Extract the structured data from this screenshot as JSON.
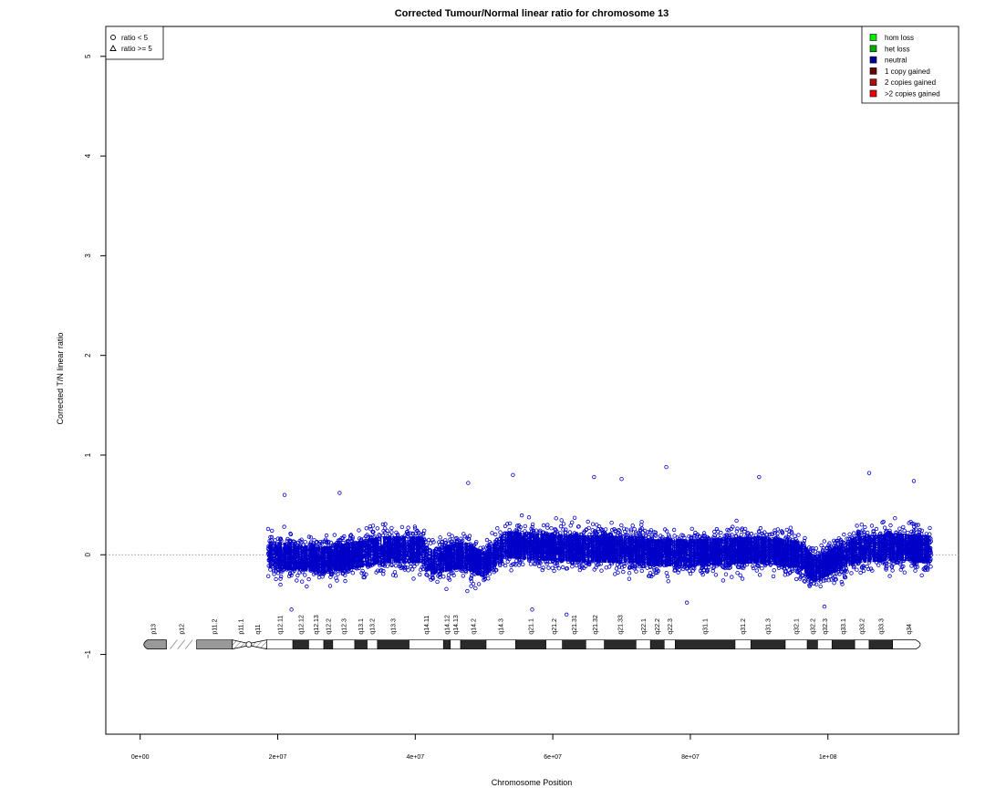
{
  "chart_data": {
    "type": "scatter",
    "title": "Corrected Tumour/Normal linear ratio for chromosome  13",
    "xlabel": "Chromosome Position",
    "ylabel": "Corrected T/N linear ratio",
    "xlim": [
      -5000000,
      119000000
    ],
    "ylim": [
      -1.8,
      5.3
    ],
    "x_ticks": [
      0,
      20000000,
      40000000,
      60000000,
      80000000,
      100000000
    ],
    "x_tick_labels": [
      "0e+00",
      "2e+07",
      "4e+07",
      "6e+07",
      "8e+07",
      "1e+08"
    ],
    "y_ticks": [
      -1,
      0,
      1,
      2,
      3,
      4,
      5
    ],
    "y_tick_labels": [
      "−1",
      "0",
      "1",
      "2",
      "3",
      "4",
      "5"
    ],
    "reference_line": 0,
    "data_range_x": [
      18600000,
      115000000
    ],
    "point_color": "#0000c8",
    "shape_legend": {
      "placement": "top-left",
      "entries": [
        {
          "symbol": "circle",
          "label": "ratio < 5"
        },
        {
          "symbol": "triangle",
          "label": "ratio >= 5"
        }
      ]
    },
    "status_legend": {
      "placement": "top-right",
      "entries": [
        {
          "label": "hom loss",
          "color": "#00ee00"
        },
        {
          "label": "het loss",
          "color": "#00aa00"
        },
        {
          "label": "neutral",
          "color": "#000099"
        },
        {
          "label": "1 copy gained",
          "color": "#6b0000"
        },
        {
          "label": "2 copies gained",
          "color": "#b01010"
        },
        {
          "label": ">2 copies gained",
          "color": "#ee0000"
        }
      ]
    },
    "series": [
      {
        "profile": [
          {
            "x": 19000000,
            "y": 0.0,
            "spread": 0.3
          },
          {
            "x": 22000000,
            "y": -0.02,
            "spread": 0.3
          },
          {
            "x": 26000000,
            "y": -0.05,
            "spread": 0.28
          },
          {
            "x": 30000000,
            "y": -0.02,
            "spread": 0.3
          },
          {
            "x": 35000000,
            "y": 0.05,
            "spread": 0.3
          },
          {
            "x": 41000000,
            "y": 0.05,
            "spread": 0.3
          },
          {
            "x": 42000000,
            "y": -0.08,
            "spread": 0.28
          },
          {
            "x": 47000000,
            "y": 0.0,
            "spread": 0.3
          },
          {
            "x": 50000000,
            "y": -0.1,
            "spread": 0.28
          },
          {
            "x": 53000000,
            "y": 0.1,
            "spread": 0.3
          },
          {
            "x": 58000000,
            "y": 0.08,
            "spread": 0.3
          },
          {
            "x": 65000000,
            "y": 0.06,
            "spread": 0.3
          },
          {
            "x": 73000000,
            "y": 0.05,
            "spread": 0.3
          },
          {
            "x": 74000000,
            "y": 0.02,
            "spread": 0.3
          },
          {
            "x": 80000000,
            "y": 0.02,
            "spread": 0.3
          },
          {
            "x": 90000000,
            "y": 0.05,
            "spread": 0.3
          },
          {
            "x": 96000000,
            "y": 0.0,
            "spread": 0.3
          },
          {
            "x": 98000000,
            "y": -0.15,
            "spread": 0.28
          },
          {
            "x": 101000000,
            "y": -0.05,
            "spread": 0.28
          },
          {
            "x": 104000000,
            "y": 0.05,
            "spread": 0.3
          },
          {
            "x": 110000000,
            "y": 0.08,
            "spread": 0.3
          },
          {
            "x": 115000000,
            "y": 0.05,
            "spread": 0.3
          }
        ],
        "notable_points": [
          {
            "x": 76500000,
            "y": 0.88
          },
          {
            "x": 54200000,
            "y": 0.8
          },
          {
            "x": 106000000,
            "y": 0.82
          },
          {
            "x": 47700000,
            "y": 0.72
          },
          {
            "x": 70000000,
            "y": 0.76
          },
          {
            "x": 66000000,
            "y": 0.78
          },
          {
            "x": 112500000,
            "y": 0.74
          },
          {
            "x": 90000000,
            "y": 0.78
          },
          {
            "x": 21000000,
            "y": 0.6
          },
          {
            "x": 29000000,
            "y": 0.62
          },
          {
            "x": 62000000,
            "y": -0.6
          },
          {
            "x": 57000000,
            "y": -0.55
          },
          {
            "x": 22000000,
            "y": -0.55
          },
          {
            "x": 79500000,
            "y": -0.48
          },
          {
            "x": 99500000,
            "y": -0.52
          }
        ]
      }
    ],
    "ideogram": {
      "y": -0.9,
      "bands": [
        {
          "name": "p13",
          "start": 0,
          "end": 3800000,
          "stain": "gvar"
        },
        {
          "name": "p12",
          "start": 3800000,
          "end": 8200000,
          "stain": "stalk"
        },
        {
          "name": "p11.2",
          "start": 8200000,
          "end": 13400000,
          "stain": "gvar"
        },
        {
          "name": "p11.1",
          "start": 13400000,
          "end": 15800000,
          "stain": "acen"
        },
        {
          "name": "q11",
          "start": 15800000,
          "end": 18400000,
          "stain": "acen"
        },
        {
          "name": "q12.11",
          "start": 18400000,
          "end": 22200000,
          "stain": "gneg"
        },
        {
          "name": "q12.12",
          "start": 22200000,
          "end": 24500000,
          "stain": "gpos"
        },
        {
          "name": "q12.13",
          "start": 24500000,
          "end": 26700000,
          "stain": "gneg"
        },
        {
          "name": "q12.2",
          "start": 26700000,
          "end": 28000000,
          "stain": "gpos"
        },
        {
          "name": "q12.3",
          "start": 28000000,
          "end": 31200000,
          "stain": "gneg"
        },
        {
          "name": "q13.1",
          "start": 31200000,
          "end": 33000000,
          "stain": "gpos"
        },
        {
          "name": "q13.2",
          "start": 33000000,
          "end": 34500000,
          "stain": "gneg"
        },
        {
          "name": "q13.3",
          "start": 34500000,
          "end": 39100000,
          "stain": "gpos"
        },
        {
          "name": "q14.11",
          "start": 39100000,
          "end": 44100000,
          "stain": "gneg"
        },
        {
          "name": "q14.12",
          "start": 44100000,
          "end": 45100000,
          "stain": "gpos"
        },
        {
          "name": "q14.13",
          "start": 45100000,
          "end": 46600000,
          "stain": "gneg"
        },
        {
          "name": "q14.2",
          "start": 46600000,
          "end": 50300000,
          "stain": "gpos"
        },
        {
          "name": "q14.3",
          "start": 50300000,
          "end": 54600000,
          "stain": "gneg"
        },
        {
          "name": "q21.1",
          "start": 54600000,
          "end": 59000000,
          "stain": "gpos"
        },
        {
          "name": "q21.2",
          "start": 59000000,
          "end": 61400000,
          "stain": "gneg"
        },
        {
          "name": "q21.31",
          "start": 61400000,
          "end": 64800000,
          "stain": "gpos"
        },
        {
          "name": "q21.32",
          "start": 64800000,
          "end": 67500000,
          "stain": "gneg"
        },
        {
          "name": "q21.33",
          "start": 67500000,
          "end": 72100000,
          "stain": "gpos"
        },
        {
          "name": "q22.1",
          "start": 72100000,
          "end": 74200000,
          "stain": "gneg"
        },
        {
          "name": "q22.2",
          "start": 74200000,
          "end": 76200000,
          "stain": "gpos"
        },
        {
          "name": "q22.3",
          "start": 76200000,
          "end": 77800000,
          "stain": "gneg"
        },
        {
          "name": "q31.1",
          "start": 77800000,
          "end": 86500000,
          "stain": "gpos"
        },
        {
          "name": "q31.2",
          "start": 86500000,
          "end": 88800000,
          "stain": "gneg"
        },
        {
          "name": "q31.3",
          "start": 88800000,
          "end": 93800000,
          "stain": "gpos"
        },
        {
          "name": "q32.1",
          "start": 93800000,
          "end": 97000000,
          "stain": "gneg"
        },
        {
          "name": "q32.2",
          "start": 97000000,
          "end": 98500000,
          "stain": "gpos"
        },
        {
          "name": "q32.3",
          "start": 98500000,
          "end": 100600000,
          "stain": "gneg"
        },
        {
          "name": "q33.1",
          "start": 100600000,
          "end": 103900000,
          "stain": "gpos"
        },
        {
          "name": "q33.2",
          "start": 103900000,
          "end": 106000000,
          "stain": "gneg"
        },
        {
          "name": "q33.3",
          "start": 106000000,
          "end": 109400000,
          "stain": "gpos"
        },
        {
          "name": "q34",
          "start": 109400000,
          "end": 114100000,
          "stain": "gneg"
        }
      ]
    }
  }
}
